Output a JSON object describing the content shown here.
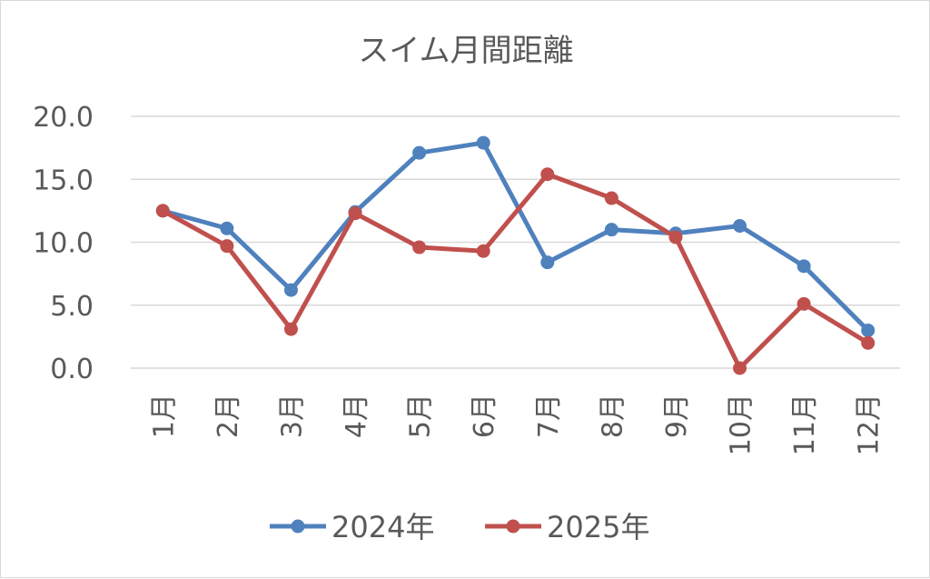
{
  "chart_data": {
    "type": "line",
    "title": "スイム月間距離",
    "categories": [
      "1月",
      "2月",
      "3月",
      "4月",
      "5月",
      "6月",
      "7月",
      "8月",
      "9月",
      "10月",
      "11月",
      "12月"
    ],
    "series": [
      {
        "name": "2024年",
        "color": "#4f81bd",
        "values": [
          12.5,
          11.1,
          6.2,
          12.4,
          17.1,
          17.9,
          8.4,
          11.0,
          10.7,
          11.3,
          8.1,
          3.0
        ]
      },
      {
        "name": "2025年",
        "color": "#c0504d",
        "values": [
          12.5,
          9.7,
          3.1,
          12.3,
          9.6,
          9.3,
          15.4,
          13.5,
          10.4,
          0.0,
          5.1,
          2.0
        ]
      }
    ],
    "yticks": [
      "0.0",
      "5.0",
      "10.0",
      "15.0",
      "20.0"
    ],
    "ylim": [
      0,
      20
    ],
    "grid": true,
    "legend": "bottom"
  }
}
